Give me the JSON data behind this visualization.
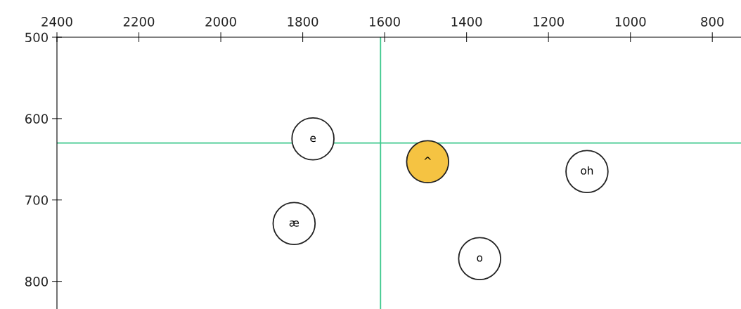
{
  "chart_data": {
    "type": "scatter",
    "x": [
      1775,
      1495,
      1106,
      1821,
      1368
    ],
    "values": [
      625,
      653,
      665,
      729,
      772
    ],
    "value_labels": [
      "e",
      "^",
      "oh",
      "æ",
      "o"
    ],
    "colors": [
      "#ffffff",
      "#f5c342",
      "#ffffff",
      "#ffffff",
      "#ffffff"
    ],
    "marker": "circle",
    "xlim": [
      2400,
      730
    ],
    "xticks": [
      2400,
      2200,
      2000,
      1800,
      1600,
      1400,
      1200,
      1000,
      800
    ],
    "ylim": [
      834,
      500
    ],
    "yticks": [
      500,
      600,
      700,
      800
    ],
    "ref_lines": [
      {
        "axis": "x",
        "value": 1610,
        "color": "#3cc88c"
      },
      {
        "axis": "y",
        "value": 630,
        "color": "#3cc88c"
      }
    ],
    "grid": false,
    "legend": false
  }
}
